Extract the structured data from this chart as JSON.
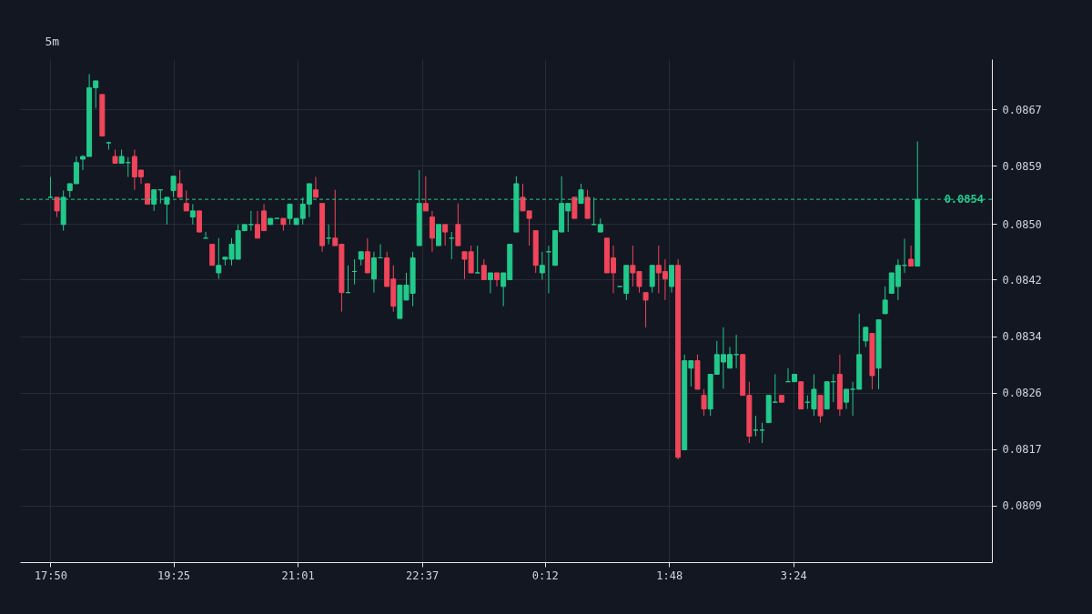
{
  "chart_data": {
    "type": "candlestick",
    "title": "5m",
    "x": [
      "--01-01T17:50",
      "--01-01T17:55",
      "--01-01T18:00",
      "--01-01T18:05",
      "--01-01T18:10",
      "--01-01T18:15",
      "--01-01T18:20",
      "--01-01T18:25",
      "--01-01T18:30",
      "--01-01T18:35",
      "--01-01T18:40",
      "--01-01T18:45",
      "--01-01T18:50",
      "--01-01T18:55",
      "--01-01T19:00",
      "--01-01T19:05",
      "--01-01T19:10",
      "--01-01T19:15",
      "--01-01T19:20",
      "--01-01T19:25",
      "--01-01T19:30",
      "--01-01T19:35",
      "--01-01T19:40",
      "--01-01T19:45",
      "--01-01T19:50",
      "--01-01T19:55",
      "--01-01T20:00",
      "--01-01T20:05",
      "--01-01T20:10",
      "--01-01T20:15",
      "--01-01T20:20",
      "--01-01T20:25",
      "--01-01T20:30",
      "--01-01T20:35",
      "--01-01T20:40",
      "--01-01T20:45",
      "--01-01T20:50",
      "--01-01T20:55",
      "--01-01T21:00",
      "--01-01T21:05",
      "--01-01T21:10",
      "--01-01T21:15",
      "--01-01T21:20",
      "--01-01T21:25",
      "--01-01T21:30",
      "--01-01T21:35",
      "--01-01T21:40",
      "--01-01T21:45",
      "--01-01T21:50",
      "--01-01T21:55",
      "--01-01T22:00",
      "--01-01T22:05",
      "--01-01T22:10",
      "--01-01T22:15",
      "--01-01T22:20",
      "--01-01T22:25",
      "--01-01T22:30",
      "--01-01T22:35",
      "--01-01T22:40",
      "--01-01T22:45",
      "--01-01T22:50",
      "--01-01T22:55",
      "--01-01T23:00",
      "--01-01T23:05",
      "--01-01T23:10",
      "--01-01T23:15",
      "--01-01T23:20",
      "--01-01T23:25",
      "--01-01T23:30",
      "--01-01T23:35",
      "--01-01T23:40",
      "--01-01T23:45",
      "--01-01T23:50",
      "--01-01T23:55",
      "--01-02T00:00",
      "--01-02T00:05",
      "--01-02T00:10",
      "--01-02T00:15",
      "--01-02T00:20",
      "--01-02T00:25",
      "--01-02T00:30",
      "--01-02T00:35",
      "--01-02T00:40",
      "--01-02T00:45",
      "--01-02T00:50",
      "--01-02T00:55",
      "--01-02T01:00",
      "--01-02T01:05",
      "--01-02T01:10",
      "--01-02T01:15",
      "--01-02T01:20",
      "--01-02T01:25",
      "--01-02T01:30",
      "--01-02T01:35",
      "--01-02T01:40",
      "--01-02T01:45",
      "--01-02T01:50",
      "--01-02T01:55",
      "--01-02T02:00",
      "--01-02T02:05",
      "--01-02T02:10",
      "--01-02T02:15",
      "--01-02T02:20",
      "--01-02T02:25",
      "--01-02T02:30",
      "--01-02T02:35",
      "--01-02T02:40",
      "--01-02T02:45",
      "--01-02T02:50",
      "--01-02T02:55",
      "--01-02T03:00",
      "--01-02T03:05",
      "--01-02T03:10",
      "--01-02T03:15",
      "--01-02T03:20",
      "--01-02T03:25",
      "--01-02T03:30",
      "--01-02T03:35",
      "--01-02T03:40",
      "--01-02T03:45",
      "--01-02T03:50",
      "--01-02T03:55",
      "--01-02T04:00",
      "--01-02T04:05",
      "--01-02T04:10",
      "--01-02T04:15",
      "--01-02T04:20",
      "--01-02T04:25",
      "--01-02T04:30",
      "--01-02T04:35",
      "--01-02T04:40",
      "--01-02T04:45",
      "--01-02T04:50",
      "--01-02T04:55",
      "--01-02T05:00"
    ],
    "ohlc": [
      [
        0.08543,
        0.08573,
        0.08543,
        0.08543
      ],
      [
        0.08543,
        0.08543,
        0.08514,
        0.08523
      ],
      [
        0.08503,
        0.08553,
        0.08494,
        0.08543
      ],
      [
        0.08553,
        0.08563,
        0.08543,
        0.08563
      ],
      [
        0.08563,
        0.08603,
        0.08563,
        0.08594
      ],
      [
        0.08599,
        0.08605,
        0.08583,
        0.08603
      ],
      [
        0.08603,
        0.08724,
        0.08603,
        0.08704
      ],
      [
        0.08704,
        0.08714,
        0.08674,
        0.08714
      ],
      [
        0.08694,
        0.08694,
        0.08633,
        0.08633
      ],
      [
        0.08623,
        0.08625,
        0.08613,
        0.08623
      ],
      [
        0.08603,
        0.08613,
        0.08593,
        0.08593
      ],
      [
        0.08593,
        0.08613,
        0.08593,
        0.08603
      ],
      [
        0.08594,
        0.08602,
        0.08573,
        0.08594
      ],
      [
        0.08603,
        0.08613,
        0.08554,
        0.08573
      ],
      [
        0.08583,
        0.08583,
        0.08563,
        0.08573
      ],
      [
        0.08563,
        0.08563,
        0.08533,
        0.08533
      ],
      [
        0.08533,
        0.08554,
        0.08523,
        0.08554
      ],
      [
        0.08554,
        0.08554,
        0.08534,
        0.08554
      ],
      [
        0.08533,
        0.08543,
        0.08503,
        0.08543
      ],
      [
        0.08553,
        0.08574,
        0.08543,
        0.08574
      ],
      [
        0.08563,
        0.08583,
        0.08543,
        0.08543
      ],
      [
        0.08534,
        0.08553,
        0.08523,
        0.08523
      ],
      [
        0.08514,
        0.08533,
        0.08503,
        0.08523
      ],
      [
        0.08523,
        0.08523,
        0.08492,
        0.08492
      ],
      [
        0.08483,
        0.08492,
        0.08483,
        0.08483
      ],
      [
        0.08474,
        0.08474,
        0.08443,
        0.08443
      ],
      [
        0.08432,
        0.08483,
        0.08423,
        0.08443
      ],
      [
        0.08452,
        0.08455,
        0.08443,
        0.08455
      ],
      [
        0.08452,
        0.08483,
        0.08443,
        0.08474
      ],
      [
        0.08452,
        0.08503,
        0.08452,
        0.08494
      ],
      [
        0.08494,
        0.08503,
        0.08494,
        0.08503
      ],
      [
        0.08503,
        0.08523,
        0.08494,
        0.08503
      ],
      [
        0.08503,
        0.08523,
        0.08483,
        0.08483
      ],
      [
        0.08523,
        0.08533,
        0.08494,
        0.08494
      ],
      [
        0.08503,
        0.08512,
        0.08503,
        0.08512
      ],
      [
        0.08512,
        0.08512,
        0.08512,
        0.08512
      ],
      [
        0.08512,
        0.08512,
        0.08494,
        0.08503
      ],
      [
        0.08512,
        0.08533,
        0.08503,
        0.08533
      ],
      [
        0.08503,
        0.08512,
        0.08503,
        0.08512
      ],
      [
        0.08512,
        0.08543,
        0.08503,
        0.08533
      ],
      [
        0.08533,
        0.08563,
        0.08514,
        0.08563
      ],
      [
        0.08554,
        0.08573,
        0.08543,
        0.08543
      ],
      [
        0.08534,
        0.08534,
        0.08463,
        0.08472
      ],
      [
        0.08483,
        0.08503,
        0.08474,
        0.08483
      ],
      [
        0.08483,
        0.08554,
        0.08472,
        0.08472
      ],
      [
        0.08474,
        0.08474,
        0.08375,
        0.08403
      ],
      [
        0.08403,
        0.08443,
        0.08403,
        0.08403
      ],
      [
        0.08434,
        0.08452,
        0.08415,
        0.08434
      ],
      [
        0.08452,
        0.08463,
        0.08443,
        0.08463
      ],
      [
        0.08463,
        0.08483,
        0.08432,
        0.08432
      ],
      [
        0.08423,
        0.08463,
        0.08403,
        0.08454
      ],
      [
        0.08454,
        0.08474,
        0.08454,
        0.08454
      ],
      [
        0.08454,
        0.08463,
        0.08412,
        0.08412
      ],
      [
        0.08423,
        0.08443,
        0.08375,
        0.08383
      ],
      [
        0.08365,
        0.08414,
        0.08365,
        0.08414
      ],
      [
        0.08392,
        0.08432,
        0.08392,
        0.08414
      ],
      [
        0.08402,
        0.08463,
        0.08383,
        0.08454
      ],
      [
        0.08472,
        0.08583,
        0.08472,
        0.08534
      ],
      [
        0.08534,
        0.08574,
        0.08523,
        0.08523
      ],
      [
        0.08514,
        0.08523,
        0.08463,
        0.08483
      ],
      [
        0.08472,
        0.08503,
        0.08472,
        0.08503
      ],
      [
        0.08503,
        0.08503,
        0.08472,
        0.08492
      ],
      [
        0.08483,
        0.08492,
        0.08452,
        0.08483
      ],
      [
        0.08503,
        0.08534,
        0.08472,
        0.08472
      ],
      [
        0.08463,
        0.08463,
        0.08423,
        0.08452
      ],
      [
        0.08463,
        0.08472,
        0.08432,
        0.08432
      ],
      [
        0.08432,
        0.08472,
        0.08432,
        0.08432
      ],
      [
        0.08443,
        0.08452,
        0.08422,
        0.08422
      ],
      [
        0.08422,
        0.08432,
        0.08402,
        0.08432
      ],
      [
        0.08432,
        0.08432,
        0.08412,
        0.08422
      ],
      [
        0.08412,
        0.08432,
        0.08383,
        0.08432
      ],
      [
        0.08422,
        0.08474,
        0.08422,
        0.08474
      ],
      [
        0.08492,
        0.08574,
        0.08492,
        0.08563
      ],
      [
        0.08543,
        0.08563,
        0.08523,
        0.08523
      ],
      [
        0.08523,
        0.08523,
        0.08472,
        0.08512
      ],
      [
        0.08494,
        0.08494,
        0.08432,
        0.08443
      ],
      [
        0.08432,
        0.08463,
        0.08422,
        0.08443
      ],
      [
        0.08463,
        0.08472,
        0.08402,
        0.08463
      ],
      [
        0.08443,
        0.08494,
        0.08443,
        0.08494
      ],
      [
        0.08492,
        0.08574,
        0.08492,
        0.08534
      ],
      [
        0.08523,
        0.08534,
        0.08492,
        0.08534
      ],
      [
        0.08543,
        0.08543,
        0.08512,
        0.08512
      ],
      [
        0.08534,
        0.08563,
        0.08534,
        0.08554
      ],
      [
        0.08543,
        0.08554,
        0.08512,
        0.08512
      ],
      [
        0.08503,
        0.08543,
        0.08503,
        0.08503
      ],
      [
        0.08492,
        0.08512,
        0.08492,
        0.08503
      ],
      [
        0.08483,
        0.08483,
        0.08432,
        0.08432
      ],
      [
        0.08454,
        0.08472,
        0.08402,
        0.08432
      ],
      [
        0.08412,
        0.08412,
        0.08412,
        0.08412
      ],
      [
        0.08402,
        0.08443,
        0.08392,
        0.08443
      ],
      [
        0.08443,
        0.08472,
        0.08412,
        0.08432
      ],
      [
        0.08434,
        0.08434,
        0.08403,
        0.08412
      ],
      [
        0.08403,
        0.08403,
        0.08352,
        0.08392
      ],
      [
        0.08412,
        0.08443,
        0.08403,
        0.08443
      ],
      [
        0.08443,
        0.08472,
        0.08402,
        0.08432
      ],
      [
        0.08434,
        0.08452,
        0.08392,
        0.08423
      ],
      [
        0.08412,
        0.08443,
        0.08403,
        0.08443
      ],
      [
        0.08443,
        0.08452,
        0.08158,
        0.08161
      ],
      [
        0.08172,
        0.08312,
        0.08172,
        0.08303
      ],
      [
        0.08292,
        0.08303,
        0.08265,
        0.08303
      ],
      [
        0.08303,
        0.08312,
        0.08261,
        0.08261
      ],
      [
        0.08252,
        0.08261,
        0.08222,
        0.08232
      ],
      [
        0.08232,
        0.08283,
        0.08222,
        0.08283
      ],
      [
        0.08283,
        0.08332,
        0.08283,
        0.08312
      ],
      [
        0.08301,
        0.08352,
        0.08262,
        0.08312
      ],
      [
        0.08292,
        0.08323,
        0.08292,
        0.08312
      ],
      [
        0.08312,
        0.08341,
        0.08292,
        0.08312
      ],
      [
        0.08312,
        0.08312,
        0.08252,
        0.08252
      ],
      [
        0.08252,
        0.08272,
        0.08182,
        0.08192
      ],
      [
        0.08201,
        0.08222,
        0.08192,
        0.08201
      ],
      [
        0.08201,
        0.08212,
        0.08182,
        0.08201
      ],
      [
        0.08212,
        0.08252,
        0.08212,
        0.08252
      ],
      [
        0.08242,
        0.08283,
        0.08242,
        0.08242
      ],
      [
        0.08252,
        0.08252,
        0.08242,
        0.08242
      ],
      [
        0.08272,
        0.08292,
        0.08272,
        0.08272
      ],
      [
        0.08272,
        0.08283,
        0.08272,
        0.08283
      ],
      [
        0.08272,
        0.08272,
        0.08232,
        0.08232
      ],
      [
        0.08242,
        0.08252,
        0.08232,
        0.08242
      ],
      [
        0.08232,
        0.08283,
        0.08222,
        0.08261
      ],
      [
        0.08252,
        0.08252,
        0.08212,
        0.08222
      ],
      [
        0.08232,
        0.08272,
        0.08232,
        0.08272
      ],
      [
        0.08272,
        0.08283,
        0.08242,
        0.08272
      ],
      [
        0.08283,
        0.08312,
        0.08222,
        0.08232
      ],
      [
        0.08242,
        0.08261,
        0.08232,
        0.08261
      ],
      [
        0.08261,
        0.08272,
        0.08222,
        0.08261
      ],
      [
        0.08261,
        0.08372,
        0.08261,
        0.08312
      ],
      [
        0.08332,
        0.08352,
        0.08323,
        0.08352
      ],
      [
        0.08343,
        0.08343,
        0.08261,
        0.08281
      ],
      [
        0.08292,
        0.08363,
        0.08261,
        0.08363
      ],
      [
        0.08372,
        0.08412,
        0.08372,
        0.08392
      ],
      [
        0.08402,
        0.08432,
        0.08402,
        0.08432
      ],
      [
        0.08412,
        0.08452,
        0.08392,
        0.08443
      ],
      [
        0.08443,
        0.08482,
        0.08432,
        0.08443
      ],
      [
        0.08452,
        0.08472,
        0.08442,
        0.08442
      ],
      [
        0.08442,
        0.08625,
        0.08442,
        0.0854
      ]
    ],
    "colors": [
      "#22c98b",
      "#f0455a",
      "#22c98b",
      "#22c98b",
      "#22c98b",
      "#22c98b",
      "#22c98b",
      "#22c98b",
      "#f0455a",
      "#22c98b",
      "#f0455a",
      "#22c98b",
      "#22c98b",
      "#f0455a",
      "#f0455a",
      "#f0455a",
      "#22c98b",
      "#22c98b",
      "#22c98b",
      "#22c98b",
      "#f0455a",
      "#f0455a",
      "#22c98b",
      "#f0455a",
      "#22c98b",
      "#f0455a",
      "#22c98b",
      "#22c98b",
      "#22c98b",
      "#22c98b",
      "#22c98b",
      "#22c98b",
      "#f0455a",
      "#f0455a",
      "#22c98b",
      "#22c98b",
      "#f0455a",
      "#22c98b",
      "#22c98b",
      "#22c98b",
      "#22c98b",
      "#f0455a",
      "#f0455a",
      "#22c98b",
      "#f0455a",
      "#f0455a",
      "#22c98b",
      "#22c98b",
      "#22c98b",
      "#f0455a",
      "#22c98b",
      "#22c98b",
      "#f0455a",
      "#f0455a",
      "#22c98b",
      "#22c98b",
      "#22c98b",
      "#22c98b",
      "#f0455a",
      "#f0455a",
      "#22c98b",
      "#f0455a",
      "#22c98b",
      "#f0455a",
      "#f0455a",
      "#f0455a",
      "#22c98b",
      "#f0455a",
      "#22c98b",
      "#f0455a",
      "#22c98b",
      "#22c98b",
      "#22c98b",
      "#f0455a",
      "#f0455a",
      "#f0455a",
      "#22c98b",
      "#22c98b",
      "#22c98b",
      "#22c98b",
      "#22c98b",
      "#f0455a",
      "#22c98b",
      "#f0455a",
      "#22c98b",
      "#22c98b",
      "#f0455a",
      "#f0455a",
      "#22c98b",
      "#22c98b",
      "#f0455a",
      "#f0455a",
      "#f0455a",
      "#22c98b",
      "#f0455a",
      "#f0455a",
      "#22c98b",
      "#f0455a",
      "#22c98b",
      "#22c98b",
      "#f0455a",
      "#f0455a",
      "#22c98b",
      "#22c98b",
      "#22c98b",
      "#22c98b",
      "#22c98b",
      "#f0455a",
      "#f0455a",
      "#22c98b",
      "#22c98b",
      "#22c98b",
      "#22c98b",
      "#f0455a",
      "#22c98b",
      "#22c98b",
      "#f0455a",
      "#22c98b",
      "#22c98b",
      "#f0455a",
      "#22c98b",
      "#22c98b",
      "#f0455a",
      "#22c98b",
      "#22c98b",
      "#22c98b",
      "#22c98b",
      "#f0455a",
      "#22c98b",
      "#22c98b",
      "#22c98b",
      "#22c98b",
      "#22c98b",
      "#f0455a",
      "#22c98b"
    ],
    "xlim": [
      "--01-01T17:30",
      "--01-02T05:54"
    ],
    "xticks": [
      {
        "value": "--01-01T17:50",
        "label": "17:50"
      },
      {
        "value": "--01-01T19:25",
        "label": "19:25"
      },
      {
        "value": "--01-01T21:01",
        "label": "21:01"
      },
      {
        "value": "--01-01T22:37",
        "label": "22:37"
      },
      {
        "value": "--01-02T00:12",
        "label": "0:12"
      },
      {
        "value": "--01-02T01:48",
        "label": "1:48"
      },
      {
        "value": "--01-02T03:24",
        "label": "3:24"
      }
    ],
    "ylim": [
      0.08007,
      0.08746
    ],
    "yticks": [
      {
        "value": 0.0809,
        "label": "0.0809"
      },
      {
        "value": 0.08173,
        "label": "0.0817"
      },
      {
        "value": 0.08256,
        "label": "0.0826"
      },
      {
        "value": 0.08339,
        "label": "0.0834"
      },
      {
        "value": 0.08422,
        "label": "0.0842"
      },
      {
        "value": 0.08504,
        "label": "0.0850"
      },
      {
        "value": 0.08589,
        "label": "0.0859"
      },
      {
        "value": 0.08672,
        "label": "0.0867"
      }
    ],
    "grid": true,
    "ref_lines": [
      {
        "axis": "y",
        "value": 0.0854,
        "label": "0.0854",
        "color": "#22c98b",
        "line_style": "dashed"
      }
    ]
  }
}
